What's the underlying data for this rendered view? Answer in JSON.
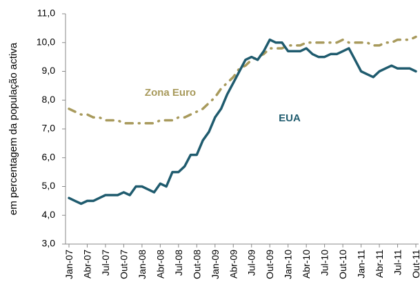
{
  "chart_data": {
    "type": "line",
    "y_label": "em percentagem da população activa",
    "annotations": [
      "Zona Euro",
      "EUA"
    ],
    "categories": [
      "Jan-07",
      null,
      null,
      "Abr-07",
      null,
      null,
      "Jul-07",
      null,
      null,
      "Out-07",
      null,
      null,
      "Jan-08",
      null,
      null,
      "Abr-08",
      null,
      null,
      "Jul-08",
      null,
      null,
      "Out-08",
      null,
      null,
      "Jan-09",
      null,
      null,
      "Abr-09",
      null,
      null,
      "Jul-09",
      null,
      null,
      "Out-09",
      null,
      null,
      "Jan-10",
      null,
      null,
      "Abr-10",
      null,
      null,
      "Jul-10",
      null,
      null,
      "Out-10",
      null,
      null,
      "Jan-11",
      null,
      null,
      "Abr-11",
      null,
      null,
      "Jul-11",
      null,
      null,
      "Out-11"
    ],
    "series": [
      {
        "name": "Zona Euro",
        "color": "#a89a5c",
        "dashed": true,
        "values": [
          7.7,
          7.6,
          7.5,
          7.5,
          7.4,
          7.4,
          7.3,
          7.3,
          7.3,
          7.2,
          7.2,
          7.2,
          7.2,
          7.2,
          7.2,
          7.3,
          7.3,
          7.3,
          7.4,
          7.4,
          7.5,
          7.6,
          7.7,
          7.9,
          8.1,
          8.4,
          8.6,
          8.8,
          9.1,
          9.2,
          9.4,
          9.5,
          9.6,
          9.8,
          9.8,
          9.8,
          9.9,
          9.9,
          9.9,
          10.0,
          10.0,
          10.0,
          10.0,
          10.0,
          10.0,
          10.1,
          10.0,
          10.0,
          10.0,
          10.0,
          9.9,
          9.9,
          10.0,
          10.0,
          10.1,
          10.1,
          10.1,
          10.2
        ]
      },
      {
        "name": "EUA",
        "color": "#1f5b6e",
        "dashed": false,
        "values": [
          4.6,
          4.5,
          4.4,
          4.5,
          4.5,
          4.6,
          4.7,
          4.7,
          4.7,
          4.8,
          4.7,
          5.0,
          5.0,
          4.9,
          4.8,
          5.1,
          5.0,
          5.5,
          5.5,
          5.7,
          6.1,
          6.1,
          6.6,
          6.9,
          7.4,
          7.7,
          8.2,
          8.6,
          9.0,
          9.4,
          9.5,
          9.4,
          9.7,
          10.1,
          10.0,
          10.0,
          9.7,
          9.7,
          9.7,
          9.8,
          9.6,
          9.5,
          9.5,
          9.6,
          9.6,
          9.7,
          9.8,
          9.4,
          9.0,
          8.9,
          8.8,
          9.0,
          9.1,
          9.2,
          9.1,
          9.1,
          9.1,
          9.0
        ]
      }
    ],
    "ylim": [
      3,
      11
    ],
    "yticks": [
      {
        "value": 3,
        "label": "3,0"
      },
      {
        "value": 4,
        "label": "4,0"
      },
      {
        "value": 5,
        "label": "5,0"
      },
      {
        "value": 6,
        "label": "6,0"
      },
      {
        "value": 7,
        "label": "7,0"
      },
      {
        "value": 8,
        "label": "8,0"
      },
      {
        "value": 9,
        "label": "9,0"
      },
      {
        "value": 10,
        "label": "10,0"
      },
      {
        "value": 11,
        "label": "11,0"
      }
    ],
    "grid": false
  }
}
